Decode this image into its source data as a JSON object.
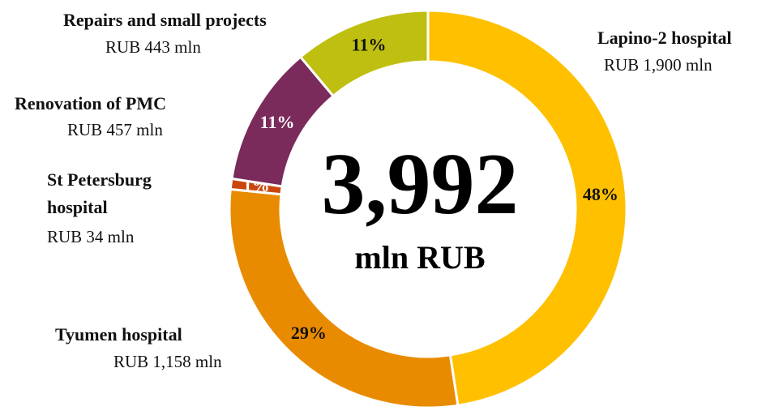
{
  "chart_data": {
    "type": "donut",
    "categories": [
      "Lapino-2 hospital",
      "Tyumen hospital",
      "St Petersburg hospital",
      "Renovation of PMC",
      "Repairs and small projects"
    ],
    "values": [
      1900,
      1158,
      34,
      457,
      443
    ],
    "value_labels": [
      "RUB 1,900 mln",
      "RUB 1,158 mln",
      "RUB 34 mln",
      "RUB 457 mln",
      "RUB 443 mln"
    ],
    "percent_labels": [
      "48%",
      "29%",
      "1%",
      "11%",
      "11%"
    ],
    "colors": [
      "#FFC000",
      "#E98B00",
      "#C9470C",
      "#7B2A5C",
      "#BFBF12"
    ],
    "center_label": "3,992",
    "center_sublabel": "mln RUB"
  }
}
